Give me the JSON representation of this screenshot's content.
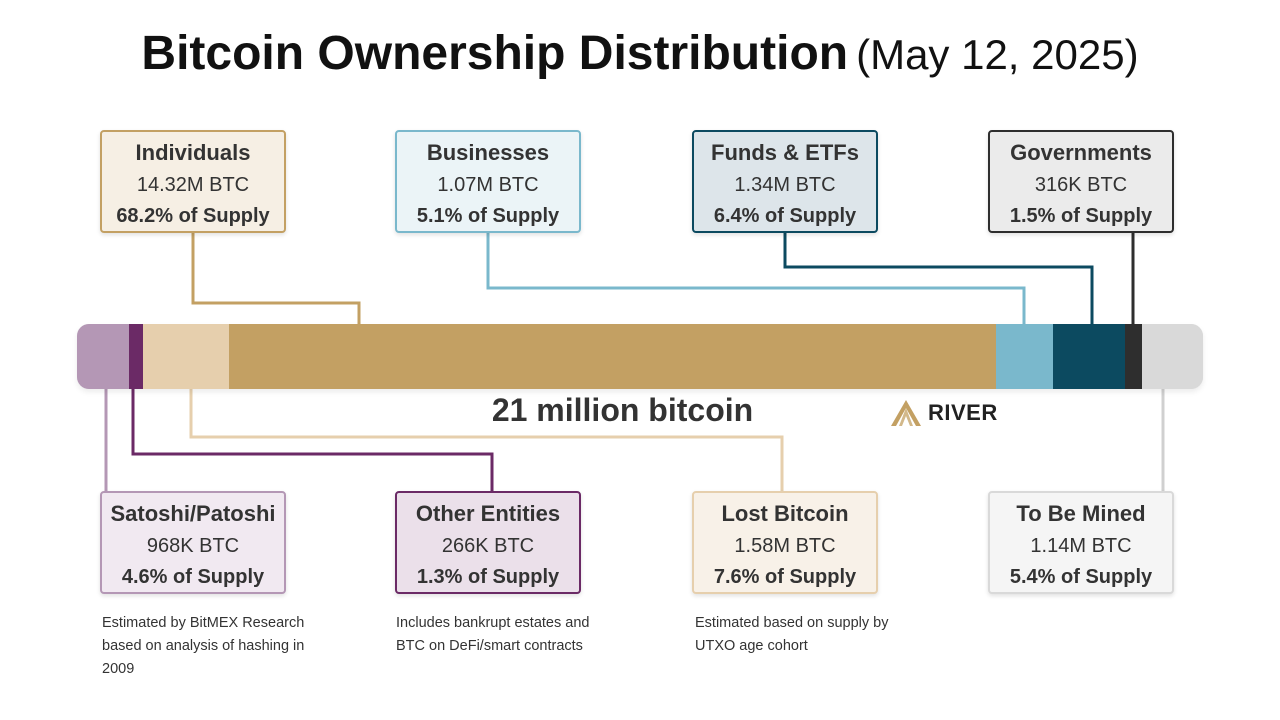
{
  "title": {
    "main": "Bitcoin Ownership Distribution",
    "date": "(May 12, 2025)"
  },
  "total_label": "21 million bitcoin",
  "logo": {
    "text": "RIVER",
    "icon": "river-mountain-icon"
  },
  "chart_data": {
    "type": "bar",
    "title": "Bitcoin Ownership Distribution (May 12, 2025)",
    "total": "21 million bitcoin",
    "series": [
      {
        "name": "Satoshi/Patoshi",
        "amount": "968K BTC",
        "pct_label": "4.6% of Supply",
        "value": 4.6,
        "bar_color": "#b497b5",
        "box_fill": "#f1e9f1",
        "box_border": "#b497b5",
        "note": "Estimated by BitMEX Research based on analysis of hashing in 2009"
      },
      {
        "name": "Other Entities",
        "amount": "266K BTC",
        "pct_label": "1.3% of Supply",
        "value": 1.3,
        "bar_color": "#6b2a66",
        "box_fill": "#ebe0ea",
        "box_border": "#6b2a66",
        "note": "Includes bankrupt estates and BTC on DeFi/smart contracts"
      },
      {
        "name": "Lost Bitcoin",
        "amount": "1.58M BTC",
        "pct_label": "7.6% of Supply",
        "value": 7.6,
        "bar_color": "#e6cfad",
        "box_fill": "#f8f1e8",
        "box_border": "#e6cfad",
        "note": "Estimated based on supply by UTXO age cohort"
      },
      {
        "name": "Individuals",
        "amount": "14.32M BTC",
        "pct_label": "68.2% of Supply",
        "value": 68.2,
        "bar_color": "#c3a063",
        "box_fill": "#f6efe4",
        "box_border": "#c3a063",
        "note": ""
      },
      {
        "name": "Businesses",
        "amount": "1.07M BTC",
        "pct_label": "5.1% of Supply",
        "value": 5.1,
        "bar_color": "#7ab8cc",
        "box_fill": "#ebf4f7",
        "box_border": "#7ab8cc",
        "note": ""
      },
      {
        "name": "Funds & ETFs",
        "amount": "1.34M BTC",
        "pct_label": "6.4% of Supply",
        "value": 6.4,
        "bar_color": "#0c4a60",
        "box_fill": "#dde5ea",
        "box_border": "#0c4a60",
        "note": ""
      },
      {
        "name": "Governments",
        "amount": "316K BTC",
        "pct_label": "1.5% of Supply",
        "value": 1.5,
        "bar_color": "#2e2e2e",
        "box_fill": "#ebebeb",
        "box_border": "#2e2e2e",
        "note": ""
      },
      {
        "name": "To Be Mined",
        "amount": "1.14M BTC",
        "pct_label": "5.4% of Supply",
        "value": 5.4,
        "bar_color": "#d9d9d9",
        "box_fill": "#f5f5f5",
        "box_border": "#d9d9d9",
        "note": ""
      }
    ]
  }
}
